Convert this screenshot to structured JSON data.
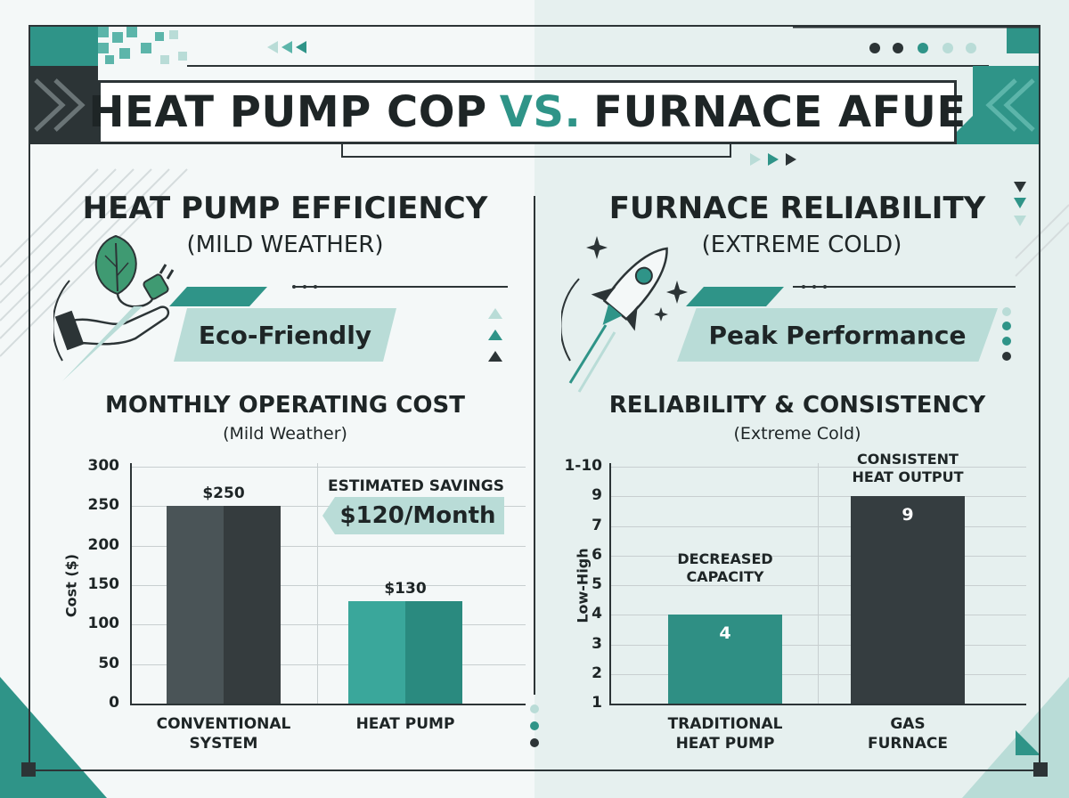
{
  "header": {
    "title_part1": "HEAT PUMP COP",
    "title_vs": "VS.",
    "title_part2": "FURNACE AFUE"
  },
  "left_panel": {
    "title": "HEAT PUMP EFFICIENCY",
    "subtitle": "(MILD WEATHER)",
    "badge": "Eco-Friendly",
    "icon": "leaf-plug-hand-icon"
  },
  "right_panel": {
    "title": "FURNACE RELIABILITY",
    "subtitle": "(EXTREME COLD)",
    "badge": "Peak Performance",
    "icon": "rocket-icon"
  },
  "colors": {
    "accent": "#2f9488",
    "dark": "#2c3436",
    "light_accent": "#b9dcd7",
    "bar_dark": "#3e4749"
  },
  "chart_data": [
    {
      "type": "bar",
      "title": "MONTHLY OPERATING COST",
      "subtitle": "(Mild Weather)",
      "ylabel": "Cost ($)",
      "ylim": [
        0,
        300
      ],
      "yticks": [
        0,
        50,
        100,
        150,
        200,
        250,
        300
      ],
      "categories": [
        "CONVENTIONAL\nSYSTEM",
        "HEAT PUMP"
      ],
      "values": [
        250,
        130
      ],
      "data_labels": [
        "$250",
        "$130"
      ],
      "annotation": {
        "label": "ESTIMATED SAVINGS",
        "value": "$120/Month"
      }
    },
    {
      "type": "bar",
      "title": "RELIABILITY & CONSISTENCY",
      "subtitle": "(Extreme Cold)",
      "ylabel": "Low-High",
      "ytick_labels": [
        "1",
        "2",
        "3",
        "4",
        "5",
        "6",
        "7",
        "9",
        "1-10"
      ],
      "categories": [
        "TRADITIONAL\nHEAT PUMP",
        "GAS\nFURNACE"
      ],
      "values": [
        4,
        9
      ],
      "data_labels": [
        "4",
        "9"
      ],
      "annotations": [
        "DECREASED\nCAPACITY",
        "CONSISTENT\nHEAT OUTPUT"
      ]
    }
  ]
}
